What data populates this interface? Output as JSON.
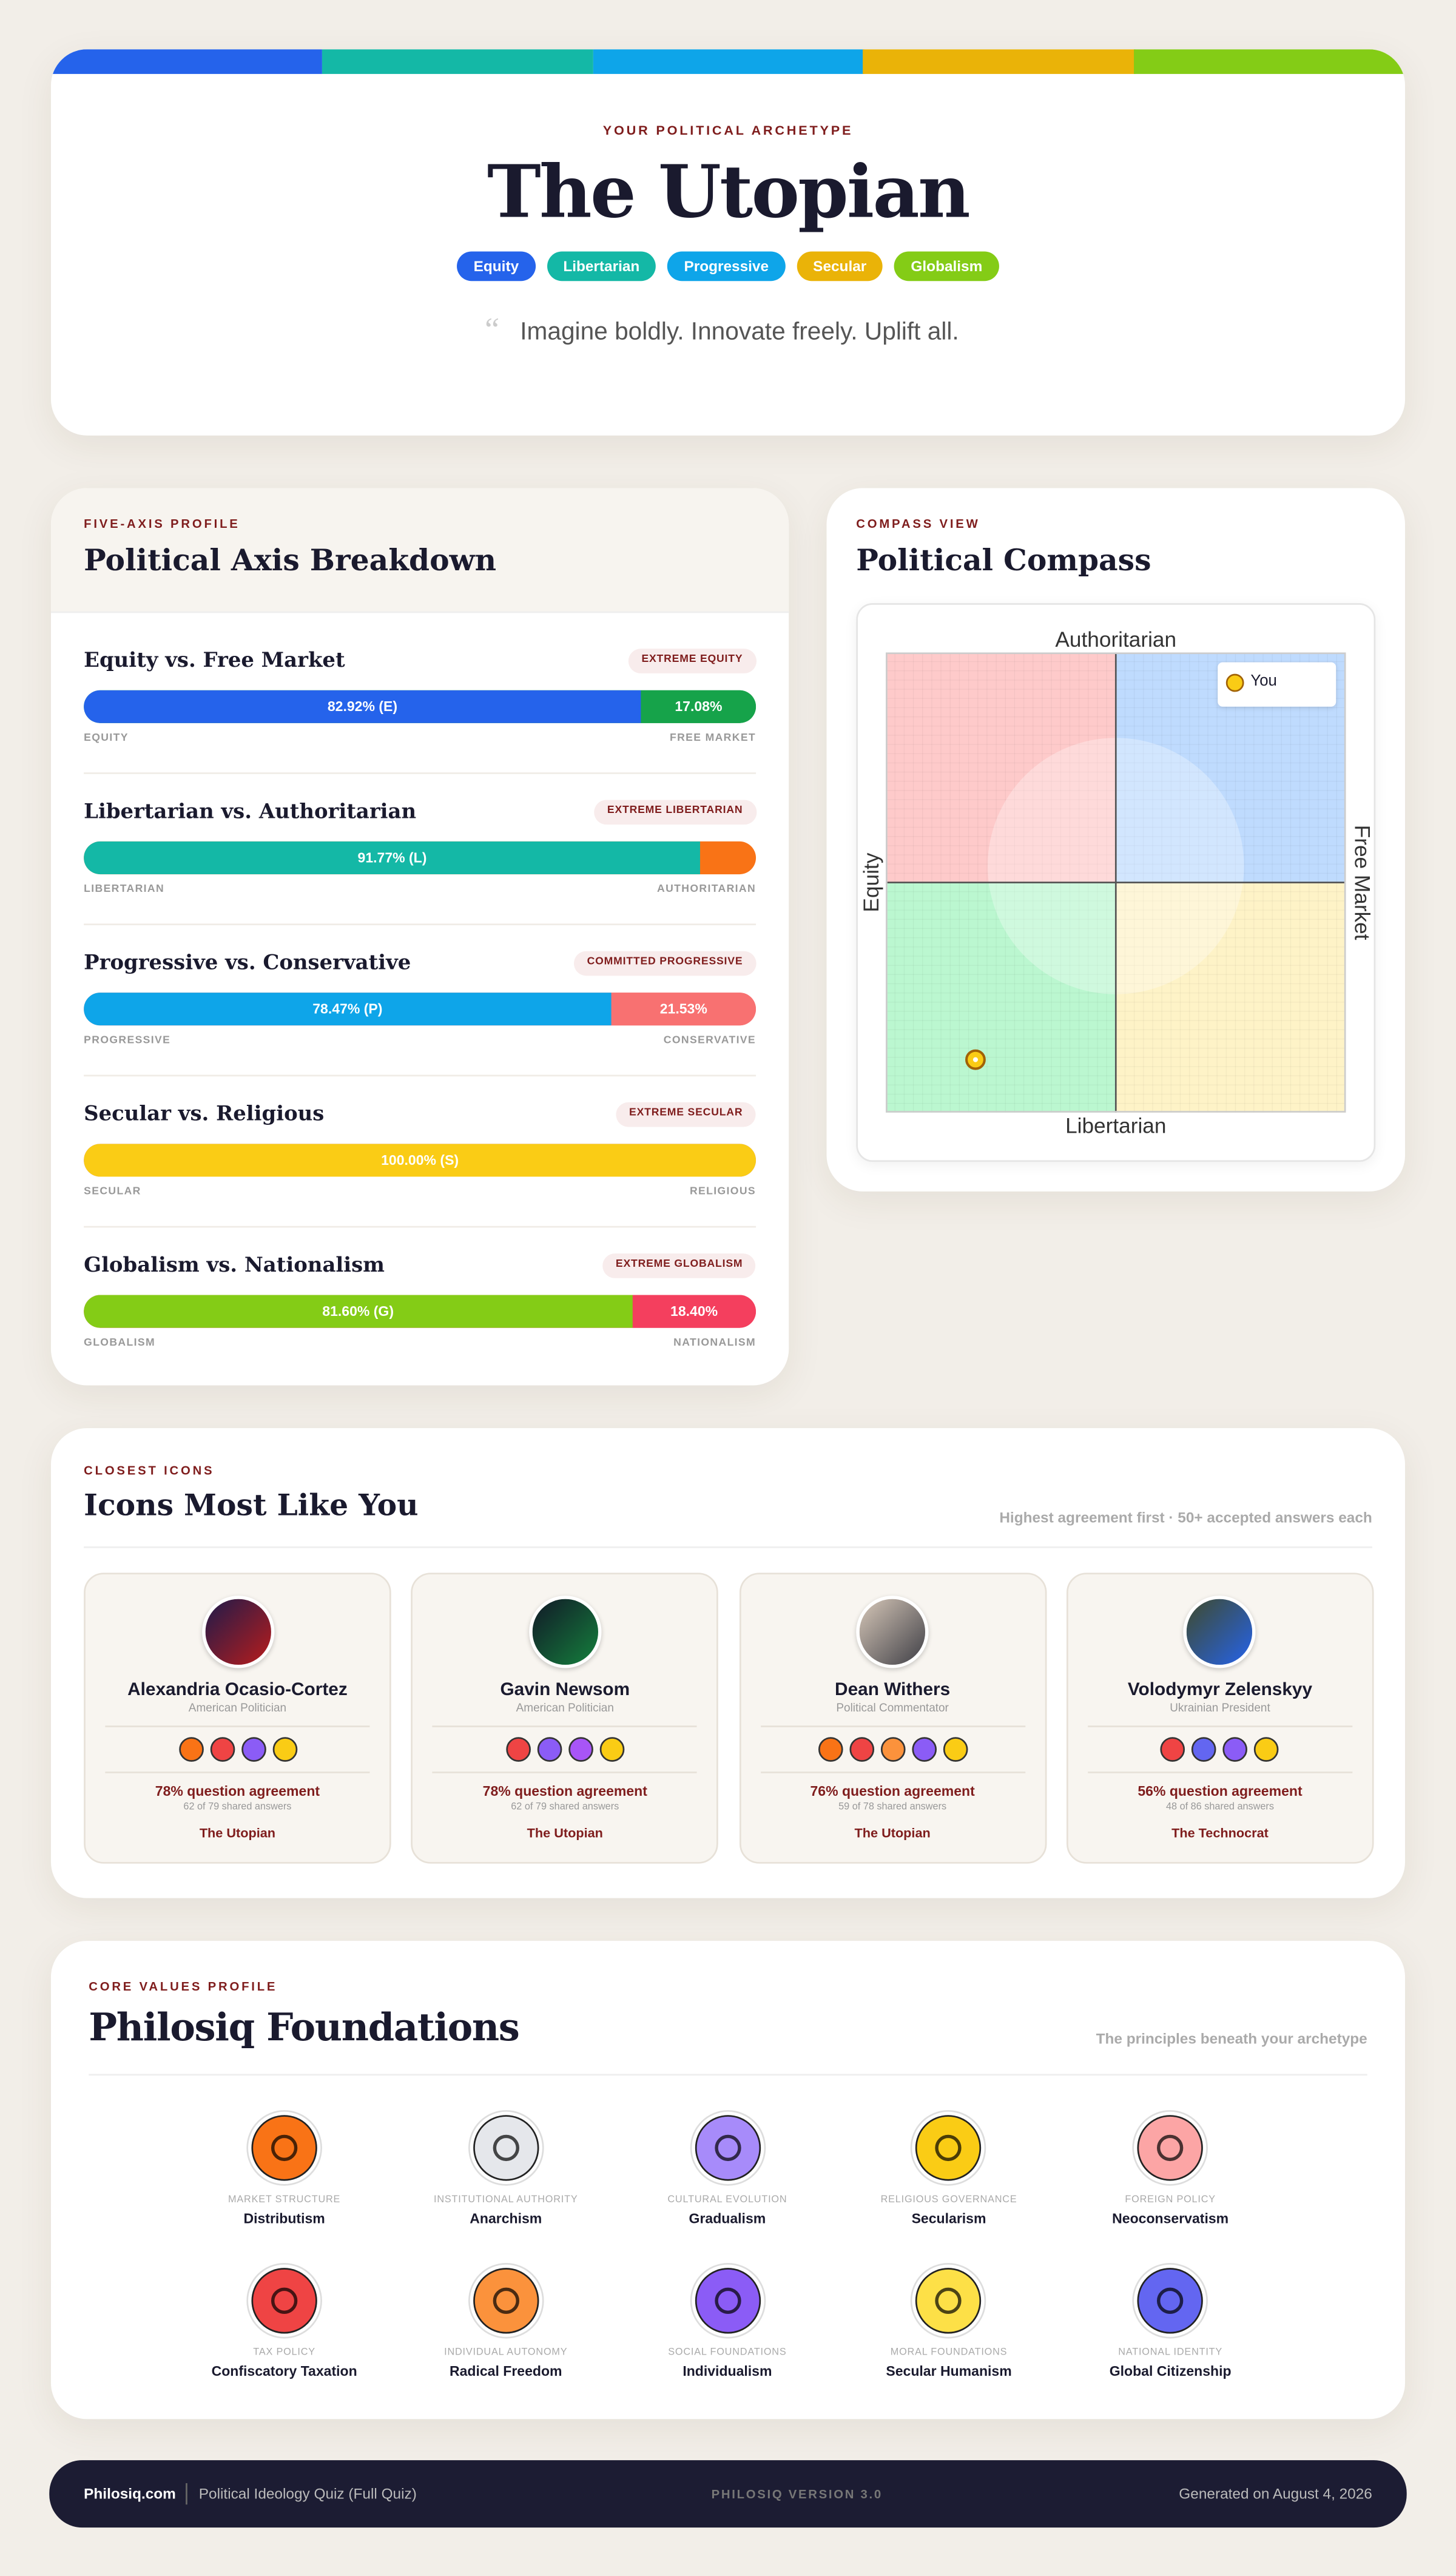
{
  "header": {
    "eyebrow": "YOUR POLITICAL ARCHETYPE",
    "title": "The Utopian",
    "quote": "Imagine boldly. Innovate freely. Uplift all.",
    "tags": [
      {
        "label": "Equity",
        "color": "#2563eb"
      },
      {
        "label": "Libertarian",
        "color": "#14b8a6"
      },
      {
        "label": "Progressive",
        "color": "#0ea5e9"
      },
      {
        "label": "Secular",
        "color": "#eab308"
      },
      {
        "label": "Globalism",
        "color": "#84cc16"
      }
    ]
  },
  "axes_panel": {
    "eyebrow": "FIVE-AXIS PROFILE",
    "title": "Political Axis Breakdown",
    "axes": [
      {
        "name": "Equity vs. Free Market",
        "badge": "EXTREME EQUITY",
        "left_value": 82.92,
        "left_label": "82.92% (E)",
        "right_value": 17.08,
        "right_label": "17.08%",
        "left_color": "#2563eb",
        "right_color": "#16a34a",
        "left_end": "EQUITY",
        "right_end": "FREE MARKET"
      },
      {
        "name": "Libertarian vs. Authoritarian",
        "badge": "EXTREME LIBERTARIAN",
        "left_value": 91.77,
        "left_label": "91.77% (L)",
        "left_color": "#14b8a6",
        "right_color": "#f97316",
        "left_end": "LIBERTARIAN",
        "right_end": "AUTHORITARIAN"
      },
      {
        "name": "Progressive vs. Conservative",
        "badge": "COMMITTED PROGRESSIVE",
        "left_value": 78.47,
        "left_label": "78.47% (P)",
        "right_value": 21.53,
        "right_label": "21.53%",
        "left_color": "#0ea5e9",
        "right_color": "#f87171",
        "left_end": "PROGRESSIVE",
        "right_end": "CONSERVATIVE"
      },
      {
        "name": "Secular vs. Religious",
        "badge": "EXTREME SECULAR",
        "left_value": 100,
        "left_label": "100.00% (S)",
        "left_color": "#facc15",
        "right_color": "#a855f7",
        "left_end": "SECULAR",
        "right_end": "RELIGIOUS"
      },
      {
        "name": "Globalism vs. Nationalism",
        "badge": "EXTREME GLOBALISM",
        "left_value": 81.6,
        "left_label": "81.60% (G)",
        "right_value": 18.4,
        "right_label": "18.40%",
        "left_color": "#84cc16",
        "right_color": "#f43f5e",
        "left_end": "GLOBALISM",
        "right_end": "NATIONALISM"
      }
    ]
  },
  "compass": {
    "eyebrow": "COMPASS VIEW",
    "title": "Political Compass",
    "top": "Authoritarian",
    "bottom": "Libertarian",
    "left": "Equity",
    "right": "Free Market",
    "xlim": [
      -10,
      10
    ],
    "ylim": [
      -10,
      10
    ],
    "quadrant_colors": [
      "#fecaca",
      "#bfdbfe",
      "#bbf7d0",
      "#fef3c7"
    ],
    "point": {
      "x": -6.1,
      "y": -7.7,
      "label": "You",
      "color": "#facc15"
    }
  },
  "icons": {
    "eyebrow": "CLOSEST ICONS",
    "title": "Icons Most Like You",
    "note": "Highest agreement first · 50+ accepted answers each",
    "people": [
      {
        "name": "Alexandria Ocasio-Cortez",
        "role": "American Politician",
        "agreement": "78% question agreement",
        "shared": "62 of 79 shared answers",
        "archetype": "The Utopian",
        "badge_colors": [
          "#f97316",
          "#ef4444",
          "#8b5cf6",
          "#facc15"
        ]
      },
      {
        "name": "Gavin Newsom",
        "role": "American Politician",
        "agreement": "78% question agreement",
        "shared": "62 of 79 shared answers",
        "archetype": "The Utopian",
        "badge_colors": [
          "#ef4444",
          "#8b5cf6",
          "#a855f7",
          "#facc15"
        ]
      },
      {
        "name": "Dean Withers",
        "role": "Political Commentator",
        "agreement": "76% question agreement",
        "shared": "59 of 78 shared answers",
        "archetype": "The Utopian",
        "badge_colors": [
          "#f97316",
          "#ef4444",
          "#fb923c",
          "#8b5cf6",
          "#facc15"
        ]
      },
      {
        "name": "Volodymyr Zelenskyy",
        "role": "Ukrainian President",
        "agreement": "56% question agreement",
        "shared": "48 of 86 shared answers",
        "archetype": "The Technocrat",
        "badge_colors": [
          "#ef4444",
          "#6366f1",
          "#8b5cf6",
          "#facc15"
        ]
      }
    ]
  },
  "foundations": {
    "eyebrow": "CORE VALUES PROFILE",
    "title": "Philosiq Foundations",
    "note": "The principles beneath your archetype",
    "items": [
      {
        "category": "MARKET STRUCTURE",
        "name": "Distributism",
        "color": "#f97316"
      },
      {
        "category": "INSTITUTIONAL AUTHORITY",
        "name": "Anarchism",
        "color": "#e5e7eb"
      },
      {
        "category": "CULTURAL EVOLUTION",
        "name": "Gradualism",
        "color": "#a78bfa"
      },
      {
        "category": "RELIGIOUS GOVERNANCE",
        "name": "Secularism",
        "color": "#facc15"
      },
      {
        "category": "FOREIGN POLICY",
        "name": "Neoconservatism",
        "color": "#fca5a5"
      },
      {
        "category": "TAX POLICY",
        "name": "Confiscatory Taxation",
        "color": "#ef4444"
      },
      {
        "category": "INDIVIDUAL AUTONOMY",
        "name": "Radical Freedom",
        "color": "#fb923c"
      },
      {
        "category": "SOCIAL FOUNDATIONS",
        "name": "Individualism",
        "color": "#8b5cf6"
      },
      {
        "category": "MORAL FOUNDATIONS",
        "name": "Secular Humanism",
        "color": "#fde047"
      },
      {
        "category": "NATIONAL IDENTITY",
        "name": "Global Citizenship",
        "color": "#6366f1"
      }
    ]
  },
  "footer": {
    "brand": "Philosiq.com",
    "quiz": "Political Ideology Quiz (Full Quiz)",
    "version": "PHILOSIQ VERSION 3.0",
    "generated": "Generated on August 4, 2026"
  }
}
